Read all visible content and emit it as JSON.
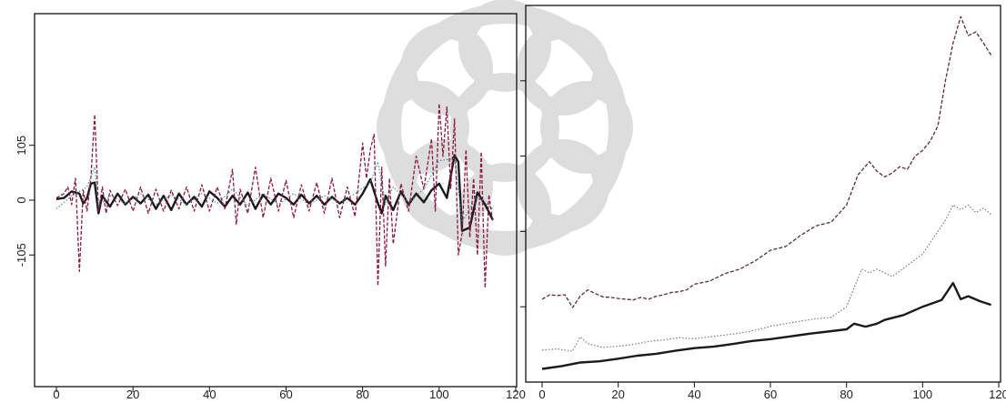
{
  "chart_data": [
    {
      "type": "line",
      "xlim": [
        0,
        120
      ],
      "ylim": [
        -0.17,
        0.17
      ],
      "x_ticks": [
        0,
        20,
        40,
        60,
        80,
        100,
        120
      ],
      "x_tick_labels": [
        "0",
        "20",
        "40",
        "60",
        "80",
        "100",
        "120"
      ],
      "y_ticks": [
        -0.05,
        0,
        0.05
      ],
      "y_tick_labels": [
        "-105",
        "0",
        "105"
      ],
      "grid": false,
      "legend": "none",
      "series": [
        {
          "style": "solid-thick",
          "color": "#1a1a1a",
          "x": [
            0,
            2,
            4,
            6,
            7,
            8,
            9,
            10,
            11,
            12,
            14,
            16,
            18,
            20,
            22,
            24,
            26,
            28,
            30,
            32,
            34,
            36,
            38,
            40,
            42,
            44,
            46,
            48,
            50,
            52,
            54,
            56,
            58,
            60,
            62,
            64,
            66,
            68,
            70,
            72,
            74,
            76,
            78,
            80,
            82,
            84,
            85,
            86,
            88,
            90,
            92,
            94,
            96,
            98,
            100,
            102,
            104,
            105,
            106,
            108,
            110,
            112,
            114
          ],
          "y": [
            0.001,
            0.002,
            0.008,
            0.006,
            -0.003,
            0.002,
            0.015,
            0.016,
            -0.012,
            0.004,
            -0.006,
            0.006,
            -0.004,
            0.003,
            -0.003,
            0.005,
            -0.008,
            0.004,
            -0.009,
            0.006,
            -0.004,
            0.003,
            -0.006,
            0.008,
            0.002,
            -0.006,
            0.004,
            -0.004,
            0.007,
            -0.008,
            0.005,
            -0.004,
            0.006,
            0.002,
            -0.004,
            0.005,
            -0.003,
            0.004,
            -0.004,
            0.003,
            -0.003,
            0.002,
            -0.004,
            0.006,
            0.019,
            -0.003,
            -0.012,
            0.004,
            -0.009,
            0.008,
            -0.004,
            0.006,
            -0.002,
            0.009,
            0.015,
            0.002,
            0.041,
            0.035,
            -0.028,
            -0.025,
            0.007,
            -0.004,
            -0.018
          ]
        },
        {
          "style": "dashed",
          "color": "#8b1a3a",
          "x": [
            0,
            2,
            3,
            4,
            5,
            6,
            7,
            8,
            9,
            10,
            11,
            12,
            13,
            14,
            16,
            18,
            20,
            22,
            24,
            26,
            28,
            30,
            32,
            34,
            36,
            38,
            40,
            42,
            44,
            46,
            47,
            48,
            50,
            52,
            54,
            56,
            58,
            60,
            62,
            64,
            66,
            68,
            70,
            72,
            74,
            76,
            78,
            80,
            81,
            82,
            83,
            84,
            85,
            86,
            87,
            88,
            90,
            92,
            94,
            96,
            98,
            99,
            100,
            101,
            102,
            103,
            104,
            105,
            106,
            107,
            108,
            109,
            110,
            111,
            112,
            113,
            114
          ],
          "y": [
            0.002,
            0.006,
            0.012,
            -0.004,
            0.02,
            -0.065,
            0.009,
            -0.01,
            0.02,
            0.078,
            -0.01,
            0.012,
            -0.012,
            0.009,
            -0.005,
            0.01,
            -0.01,
            0.012,
            -0.012,
            0.01,
            -0.01,
            0.009,
            -0.008,
            0.012,
            -0.01,
            0.014,
            -0.01,
            0.012,
            -0.008,
            0.028,
            -0.022,
            0.01,
            -0.012,
            0.03,
            -0.016,
            0.02,
            -0.01,
            0.018,
            -0.016,
            0.014,
            -0.01,
            0.016,
            -0.012,
            0.02,
            -0.016,
            0.012,
            -0.015,
            0.052,
            0.02,
            0.046,
            0.06,
            -0.078,
            0.03,
            -0.06,
            0.02,
            -0.04,
            0.015,
            -0.01,
            0.04,
            0.01,
            0.056,
            -0.01,
            0.088,
            0.04,
            0.085,
            0.01,
            0.074,
            -0.05,
            -0.03,
            0.046,
            -0.034,
            0.02,
            -0.05,
            0.044,
            -0.08,
            0.005,
            -0.02
          ]
        },
        {
          "style": "dotted",
          "color": "#3a8a9a",
          "x": [
            0,
            4,
            8,
            10,
            11,
            14,
            18,
            22,
            26,
            30,
            34,
            38,
            42,
            46,
            50,
            54,
            58,
            62,
            66,
            70,
            74,
            78,
            82,
            84,
            86,
            88,
            92,
            96,
            100,
            104,
            106,
            110,
            114
          ],
          "y": [
            -0.008,
            0.004,
            0.012,
            0.03,
            -0.006,
            0.004,
            -0.003,
            0.006,
            -0.004,
            0.005,
            -0.004,
            0.006,
            -0.003,
            0.01,
            -0.005,
            0.006,
            -0.004,
            0.006,
            -0.004,
            0.004,
            -0.002,
            0.006,
            0.016,
            0.035,
            -0.004,
            0.012,
            -0.002,
            0.01,
            0.036,
            0.038,
            -0.02,
            0.004,
            -0.008
          ]
        }
      ]
    },
    {
      "type": "line",
      "xlim": [
        0,
        120
      ],
      "ylim": [
        0,
        1
      ],
      "x_ticks": [
        0,
        20,
        40,
        60,
        80,
        100,
        120
      ],
      "x_tick_labels": [
        "0",
        "20",
        "40",
        "60",
        "80",
        "100",
        "120"
      ],
      "y_ticks": [
        0.2,
        0.4,
        0.6,
        0.8
      ],
      "y_tick_labels": [
        "",
        "",
        "",
        ""
      ],
      "grid": false,
      "legend": "none",
      "series": [
        {
          "style": "solid-thick",
          "color": "#1a1a1a",
          "x": [
            0,
            5,
            10,
            15,
            20,
            25,
            30,
            35,
            40,
            45,
            50,
            55,
            60,
            65,
            70,
            75,
            80,
            82,
            85,
            88,
            90,
            95,
            100,
            105,
            108,
            110,
            112,
            115,
            118
          ],
          "y": [
            0.035,
            0.042,
            0.052,
            0.055,
            0.062,
            0.07,
            0.075,
            0.083,
            0.09,
            0.094,
            0.101,
            0.109,
            0.114,
            0.121,
            0.128,
            0.134,
            0.14,
            0.155,
            0.147,
            0.155,
            0.165,
            0.178,
            0.2,
            0.218,
            0.263,
            0.22,
            0.228,
            0.215,
            0.205
          ]
        },
        {
          "style": "dashed",
          "color": "#5a2a3a",
          "x": [
            0,
            2,
            4,
            6,
            8,
            10,
            12,
            14,
            16,
            18,
            20,
            22,
            24,
            26,
            28,
            30,
            32,
            34,
            36,
            38,
            40,
            44,
            48,
            52,
            56,
            60,
            64,
            68,
            72,
            76,
            80,
            83,
            86,
            88,
            90,
            92,
            94,
            96,
            98,
            100,
            102,
            104,
            106,
            108,
            110,
            112,
            114,
            116,
            118
          ],
          "y": [
            0.22,
            0.232,
            0.23,
            0.232,
            0.198,
            0.228,
            0.245,
            0.235,
            0.226,
            0.225,
            0.222,
            0.22,
            0.218,
            0.225,
            0.22,
            0.228,
            0.232,
            0.238,
            0.24,
            0.245,
            0.26,
            0.268,
            0.288,
            0.3,
            0.322,
            0.35,
            0.36,
            0.39,
            0.415,
            0.425,
            0.47,
            0.55,
            0.585,
            0.56,
            0.545,
            0.555,
            0.572,
            0.565,
            0.6,
            0.615,
            0.64,
            0.68,
            0.8,
            0.9,
            0.97,
            0.92,
            0.93,
            0.9,
            0.868
          ]
        },
        {
          "style": "dotted",
          "color": "#7a6a6a",
          "x": [
            0,
            4,
            8,
            10,
            12,
            16,
            20,
            24,
            28,
            32,
            36,
            40,
            44,
            48,
            52,
            56,
            60,
            64,
            68,
            72,
            76,
            80,
            84,
            86,
            88,
            92,
            96,
            100,
            104,
            106,
            108,
            110,
            112,
            114,
            116,
            118
          ],
          "y": [
            0.085,
            0.088,
            0.082,
            0.12,
            0.102,
            0.092,
            0.095,
            0.1,
            0.108,
            0.112,
            0.118,
            0.115,
            0.12,
            0.125,
            0.13,
            0.138,
            0.148,
            0.155,
            0.162,
            0.168,
            0.172,
            0.2,
            0.3,
            0.29,
            0.3,
            0.28,
            0.31,
            0.34,
            0.4,
            0.43,
            0.47,
            0.458,
            0.47,
            0.45,
            0.462,
            0.445
          ]
        }
      ]
    }
  ]
}
